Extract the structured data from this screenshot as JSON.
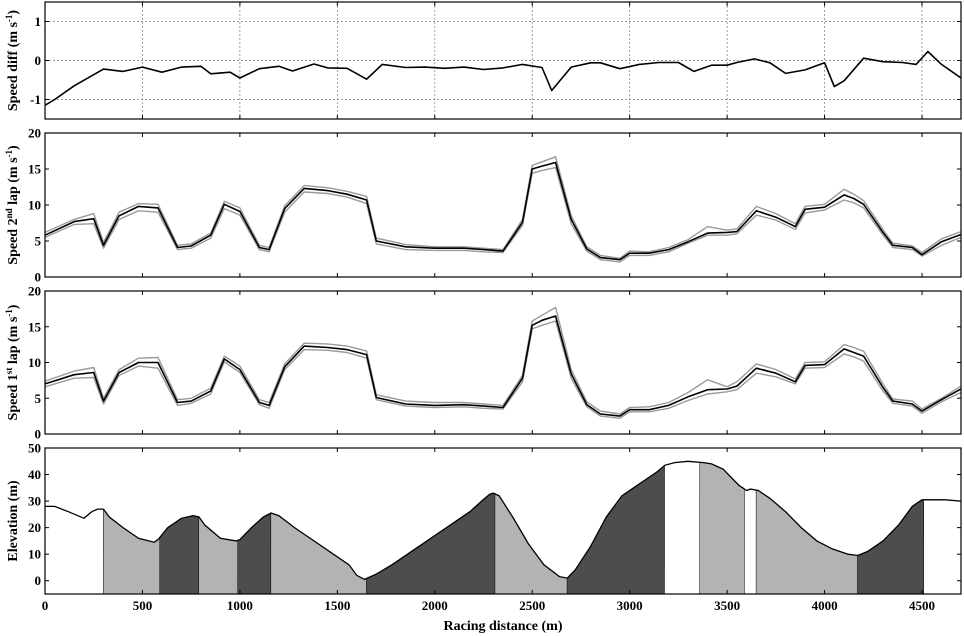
{
  "chart_data": [
    {
      "type": "line",
      "ylabel": "Speed diff (m s⁻¹)",
      "ylabel_parts": [
        "Speed diff (m s",
        "-1",
        ")"
      ],
      "xlim": [
        0,
        4700
      ],
      "ylim": [
        -1.5,
        1.5
      ],
      "yticks": [
        -1,
        0,
        1
      ],
      "grid": "dotted",
      "series": [
        {
          "style": "black",
          "x": [
            0,
            50,
            150,
            300,
            400,
            500,
            600,
            700,
            800,
            850,
            950,
            1000,
            1100,
            1200,
            1270,
            1380,
            1450,
            1550,
            1650,
            1730,
            1850,
            1950,
            2050,
            2150,
            2250,
            2350,
            2450,
            2550,
            2600,
            2700,
            2800,
            2850,
            2950,
            3050,
            3150,
            3250,
            3330,
            3420,
            3500,
            3550,
            3640,
            3720,
            3800,
            3900,
            4000,
            4050,
            4100,
            4200,
            4300,
            4400,
            4470,
            4530,
            4600,
            4700
          ],
          "y": [
            -1.15,
            -1.0,
            -0.65,
            -0.22,
            -0.28,
            -0.17,
            -0.3,
            -0.17,
            -0.15,
            -0.34,
            -0.3,
            -0.45,
            -0.21,
            -0.15,
            -0.27,
            -0.09,
            -0.19,
            -0.2,
            -0.48,
            -0.1,
            -0.18,
            -0.17,
            -0.2,
            -0.17,
            -0.23,
            -0.19,
            -0.1,
            -0.18,
            -0.77,
            -0.17,
            -0.06,
            -0.06,
            -0.21,
            -0.1,
            -0.05,
            -0.05,
            -0.28,
            -0.12,
            -0.12,
            -0.05,
            0.04,
            -0.06,
            -0.33,
            -0.24,
            -0.06,
            -0.67,
            -0.52,
            0.06,
            -0.03,
            -0.05,
            -0.1,
            0.23,
            -0.1,
            -0.45
          ]
        }
      ]
    },
    {
      "type": "line",
      "ylabel_parts": [
        "Speed 2",
        "nd",
        " lap (m s",
        "-1",
        ")"
      ],
      "xlim": [
        0,
        4700
      ],
      "ylim": [
        0,
        20
      ],
      "yticks": [
        0,
        5,
        10,
        15,
        20
      ],
      "series": [
        {
          "style": "grey",
          "x": [
            0,
            150,
            250,
            300,
            380,
            480,
            580,
            680,
            750,
            850,
            920,
            1000,
            1100,
            1150,
            1230,
            1330,
            1450,
            1550,
            1650,
            1700,
            1850,
            2000,
            2150,
            2250,
            2350,
            2450,
            2500,
            2550,
            2620,
            2700,
            2780,
            2850,
            2950,
            3000,
            3100,
            3200,
            3300,
            3400,
            3500,
            3550,
            3650,
            3750,
            3850,
            3900,
            4000,
            4100,
            4150,
            4200,
            4300,
            4350,
            4450,
            4500,
            4600,
            4700
          ],
          "y": [
            6.2,
            8.0,
            8.8,
            4.8,
            9.0,
            10.2,
            10.1,
            4.4,
            4.6,
            6.1,
            10.5,
            9.6,
            4.4,
            4.1,
            9.9,
            12.7,
            12.4,
            11.9,
            11.2,
            5.4,
            4.5,
            4.2,
            4.2,
            4.0,
            3.8,
            8.0,
            15.5,
            16.0,
            16.7,
            8.5,
            4.2,
            3.0,
            2.6,
            3.6,
            3.5,
            4.1,
            5.2,
            7.0,
            6.5,
            6.7,
            9.8,
            8.8,
            7.4,
            9.8,
            10.1,
            12.2,
            11.5,
            10.6,
            6.6,
            4.7,
            4.3,
            3.4,
            5.3,
            6.3
          ]
        },
        {
          "style": "grey",
          "x": [
            0,
            150,
            250,
            300,
            380,
            480,
            580,
            680,
            750,
            850,
            920,
            1000,
            1100,
            1150,
            1230,
            1330,
            1450,
            1550,
            1650,
            1700,
            1850,
            2000,
            2150,
            2250,
            2350,
            2450,
            2500,
            2550,
            2620,
            2700,
            2780,
            2850,
            2950,
            3000,
            3100,
            3200,
            3300,
            3400,
            3500,
            3550,
            3650,
            3750,
            3850,
            3900,
            4000,
            4100,
            4150,
            4200,
            4300,
            4350,
            4450,
            4500,
            4600,
            4700
          ],
          "y": [
            5.5,
            7.3,
            7.4,
            4.0,
            8.0,
            9.2,
            9.0,
            3.8,
            4.0,
            5.4,
            9.5,
            8.6,
            3.8,
            3.5,
            9.0,
            11.8,
            11.6,
            11.1,
            10.2,
            4.6,
            3.8,
            3.7,
            3.7,
            3.5,
            3.4,
            7.2,
            14.4,
            14.8,
            15.2,
            7.4,
            3.6,
            2.4,
            2.1,
            3.0,
            3.0,
            3.5,
            4.7,
            5.8,
            5.8,
            6.0,
            8.6,
            7.9,
            6.6,
            8.9,
            9.3,
            10.7,
            10.3,
            9.6,
            5.8,
            4.1,
            3.8,
            2.9,
            4.4,
            5.5
          ]
        },
        {
          "style": "black",
          "x": [
            0,
            150,
            250,
            300,
            380,
            480,
            580,
            680,
            750,
            850,
            920,
            1000,
            1100,
            1150,
            1230,
            1330,
            1450,
            1550,
            1650,
            1700,
            1850,
            2000,
            2150,
            2250,
            2350,
            2450,
            2500,
            2550,
            2620,
            2700,
            2780,
            2850,
            2950,
            3000,
            3100,
            3200,
            3300,
            3400,
            3500,
            3550,
            3650,
            3750,
            3850,
            3900,
            4000,
            4100,
            4150,
            4200,
            4300,
            4350,
            4450,
            4500,
            4600,
            4700
          ],
          "y": [
            5.8,
            7.7,
            8.1,
            4.4,
            8.5,
            9.8,
            9.6,
            4.1,
            4.3,
            5.8,
            10.1,
            9.1,
            4.1,
            3.8,
            9.5,
            12.3,
            12.0,
            11.5,
            10.7,
            5.0,
            4.2,
            4.0,
            4.0,
            3.8,
            3.6,
            7.6,
            15.0,
            15.4,
            15.9,
            8.0,
            3.9,
            2.7,
            2.4,
            3.3,
            3.3,
            3.8,
            4.9,
            6.1,
            6.2,
            6.3,
            9.2,
            8.3,
            7.0,
            9.4,
            9.7,
            11.4,
            10.9,
            10.1,
            6.2,
            4.4,
            4.1,
            3.1,
            4.9,
            5.9
          ]
        }
      ]
    },
    {
      "type": "line",
      "ylabel_parts": [
        "Speed 1",
        "st",
        " lap (m s",
        "-1",
        ")"
      ],
      "xlim": [
        0,
        4700
      ],
      "ylim": [
        0,
        20
      ],
      "yticks": [
        0,
        5,
        10,
        15,
        20
      ],
      "series": [
        {
          "style": "grey",
          "x": [
            0,
            150,
            250,
            300,
            380,
            480,
            580,
            680,
            750,
            850,
            920,
            1000,
            1100,
            1150,
            1230,
            1330,
            1450,
            1550,
            1650,
            1700,
            1850,
            2000,
            2150,
            2250,
            2350,
            2450,
            2500,
            2550,
            2620,
            2700,
            2780,
            2850,
            2950,
            3000,
            3100,
            3200,
            3300,
            3400,
            3500,
            3550,
            3650,
            3750,
            3850,
            3900,
            4000,
            4100,
            4150,
            4200,
            4300,
            4350,
            4450,
            4500,
            4600,
            4700
          ],
          "y": [
            7.4,
            8.8,
            9.3,
            5.0,
            9.0,
            10.6,
            10.7,
            4.8,
            5.0,
            6.4,
            10.9,
            9.5,
            4.8,
            4.4,
            9.8,
            12.7,
            12.6,
            12.3,
            11.6,
            5.5,
            4.6,
            4.4,
            4.4,
            4.2,
            4.0,
            8.2,
            15.8,
            16.6,
            17.7,
            9.0,
            4.5,
            3.2,
            2.8,
            3.7,
            3.8,
            4.4,
            5.8,
            7.6,
            6.6,
            7.3,
            9.8,
            9.0,
            7.7,
            10.0,
            10.1,
            12.5,
            12.1,
            11.6,
            7.0,
            4.9,
            4.6,
            3.5,
            5.0,
            6.7
          ]
        },
        {
          "style": "grey",
          "x": [
            0,
            150,
            250,
            300,
            380,
            480,
            580,
            680,
            750,
            850,
            920,
            1000,
            1100,
            1150,
            1230,
            1330,
            1450,
            1550,
            1650,
            1700,
            1850,
            2000,
            2150,
            2250,
            2350,
            2450,
            2500,
            2550,
            2620,
            2700,
            2780,
            2850,
            2950,
            3000,
            3100,
            3200,
            3300,
            3400,
            3500,
            3550,
            3650,
            3750,
            3850,
            3900,
            4000,
            4100,
            4150,
            4200,
            4300,
            4350,
            4450,
            4500,
            4600,
            4700
          ],
          "y": [
            6.6,
            7.8,
            7.9,
            4.2,
            8.2,
            9.5,
            9.2,
            4.0,
            4.3,
            5.6,
            10.1,
            8.6,
            4.1,
            3.6,
            9.0,
            11.8,
            11.7,
            11.4,
            10.6,
            4.8,
            3.9,
            3.7,
            3.8,
            3.6,
            3.5,
            7.3,
            14.7,
            15.2,
            15.8,
            7.8,
            3.8,
            2.5,
            2.2,
            3.1,
            3.1,
            3.6,
            4.7,
            5.6,
            5.9,
            6.2,
            8.5,
            8.0,
            7.0,
            9.2,
            9.3,
            11.2,
            10.8,
            10.2,
            6.0,
            4.3,
            3.9,
            2.9,
            4.5,
            5.8
          ]
        },
        {
          "style": "black",
          "x": [
            0,
            150,
            250,
            300,
            380,
            480,
            580,
            680,
            750,
            850,
            920,
            1000,
            1100,
            1150,
            1230,
            1330,
            1450,
            1550,
            1650,
            1700,
            1850,
            2000,
            2150,
            2250,
            2350,
            2450,
            2500,
            2550,
            2620,
            2700,
            2780,
            2850,
            2950,
            3000,
            3100,
            3200,
            3300,
            3400,
            3500,
            3550,
            3650,
            3750,
            3850,
            3900,
            4000,
            4100,
            4150,
            4200,
            4300,
            4350,
            4450,
            4500,
            4600,
            4700
          ],
          "y": [
            7.0,
            8.3,
            8.6,
            4.6,
            8.6,
            10.0,
            10.0,
            4.4,
            4.6,
            6.0,
            10.5,
            9.0,
            4.4,
            4.0,
            9.4,
            12.3,
            12.1,
            11.8,
            11.1,
            5.1,
            4.2,
            4.0,
            4.1,
            3.9,
            3.7,
            7.8,
            15.2,
            15.9,
            16.5,
            8.4,
            4.1,
            2.8,
            2.5,
            3.4,
            3.4,
            4.0,
            5.2,
            6.2,
            6.3,
            6.7,
            9.2,
            8.5,
            7.3,
            9.6,
            9.7,
            11.9,
            11.4,
            10.9,
            6.5,
            4.6,
            4.2,
            3.2,
            4.8,
            6.3
          ]
        }
      ]
    },
    {
      "type": "area",
      "ylabel": "Elevation (m)",
      "xlabel": "Racing distance (m)",
      "xlim": [
        0,
        4700
      ],
      "ylim": [
        -5,
        50
      ],
      "yticks": [
        0,
        10,
        20,
        30,
        40,
        50
      ],
      "xticks": [
        0,
        500,
        1000,
        1500,
        2000,
        2500,
        3000,
        3500,
        4000,
        4500
      ],
      "elevation": {
        "x": [
          0,
          50,
          120,
          200,
          240,
          270,
          300,
          330,
          400,
          480,
          560,
          580,
          630,
          700,
          760,
          790,
          820,
          900,
          980,
          1000,
          1060,
          1120,
          1160,
          1200,
          1280,
          1380,
          1480,
          1560,
          1600,
          1640,
          1700,
          1780,
          1860,
          1940,
          2020,
          2100,
          2180,
          2240,
          2280,
          2300,
          2330,
          2400,
          2480,
          2560,
          2640,
          2680,
          2720,
          2800,
          2880,
          2960,
          3060,
          3140,
          3180,
          3230,
          3300,
          3380,
          3420,
          3480,
          3560,
          3600,
          3620,
          3660,
          3720,
          3800,
          3880,
          3960,
          4040,
          4120,
          4170,
          4220,
          4300,
          4380,
          4450,
          4500,
          4560,
          4620,
          4700
        ],
        "y": [
          28,
          28,
          26,
          23.5,
          26,
          27,
          27,
          24,
          20,
          16,
          14.5,
          15.5,
          20,
          23.5,
          24.5,
          24,
          21,
          16,
          15,
          15.5,
          20,
          24,
          25.5,
          24.5,
          20,
          15,
          10,
          6,
          2,
          0.5,
          2.5,
          6,
          10,
          14,
          18,
          22,
          26,
          30,
          32.5,
          33,
          32,
          24,
          14,
          6,
          1.5,
          1,
          4,
          13,
          24,
          32,
          37,
          41,
          43.5,
          44.5,
          45,
          44.5,
          44,
          42,
          36,
          34,
          34.5,
          34,
          31,
          26,
          20,
          15,
          12,
          10,
          9.5,
          11,
          15,
          21,
          28,
          30.5,
          30.5,
          30.5,
          30
        ]
      },
      "bands": [
        {
          "x0": 0,
          "x1": 300,
          "fill": "white"
        },
        {
          "x0": 300,
          "x1": 590,
          "fill": "lightgrey"
        },
        {
          "x0": 590,
          "x1": 790,
          "fill": "darkgrey"
        },
        {
          "x0": 790,
          "x1": 990,
          "fill": "lightgrey"
        },
        {
          "x0": 990,
          "x1": 1160,
          "fill": "darkgrey"
        },
        {
          "x0": 1160,
          "x1": 1650,
          "fill": "lightgrey"
        },
        {
          "x0": 1650,
          "x1": 2310,
          "fill": "darkgrey"
        },
        {
          "x0": 2310,
          "x1": 2680,
          "fill": "lightgrey"
        },
        {
          "x0": 2680,
          "x1": 3180,
          "fill": "darkgrey"
        },
        {
          "x0": 3180,
          "x1": 3360,
          "fill": "white"
        },
        {
          "x0": 3360,
          "x1": 3590,
          "fill": "lightgrey"
        },
        {
          "x0": 3590,
          "x1": 3650,
          "fill": "white"
        },
        {
          "x0": 3650,
          "x1": 4170,
          "fill": "lightgrey"
        },
        {
          "x0": 4170,
          "x1": 4510,
          "fill": "darkgrey"
        },
        {
          "x0": 4510,
          "x1": 4700,
          "fill": "white"
        }
      ]
    }
  ],
  "colors": {
    "black_line": "#000000",
    "grey_line": "#9a9a9a",
    "lightgrey": "#b3b3b3",
    "darkgrey": "#4d4d4d",
    "white": "#ffffff",
    "grid": "#7a7a7a"
  }
}
